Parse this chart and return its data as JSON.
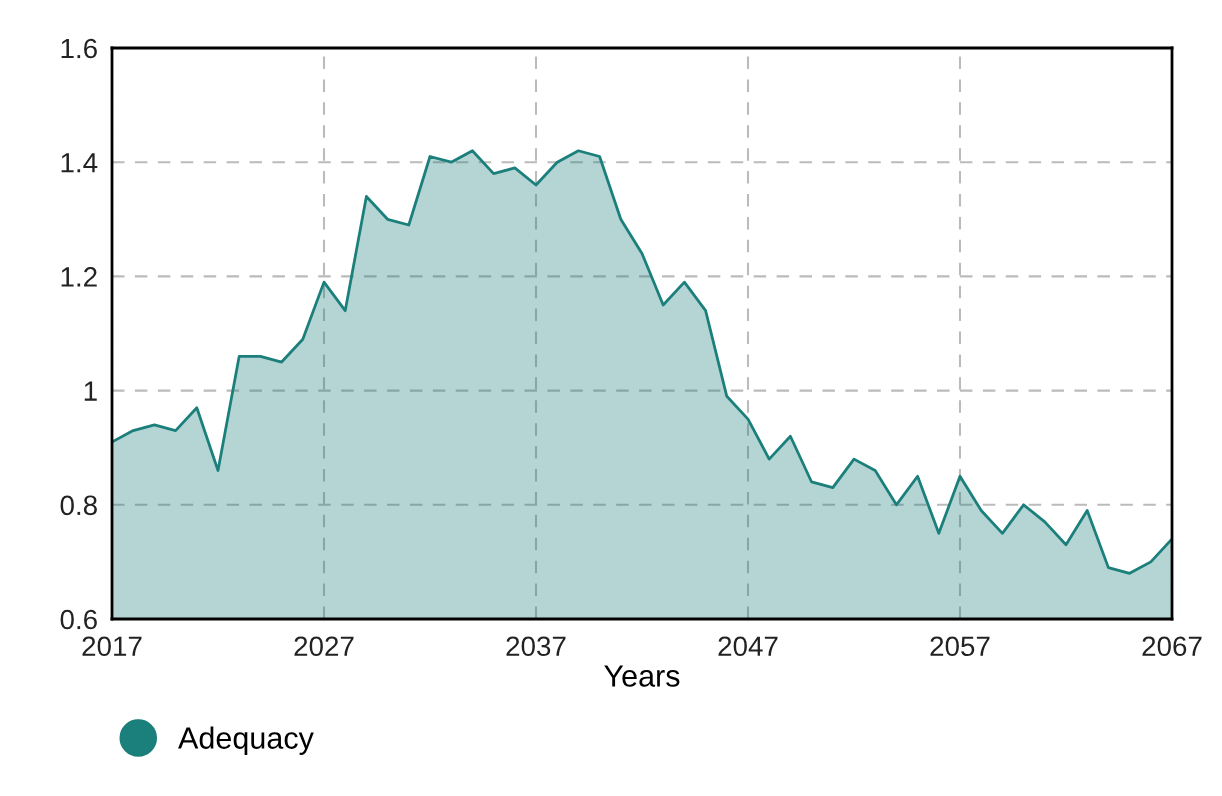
{
  "chart_data": {
    "type": "area",
    "xlabel": "Years",
    "x": [
      2017,
      2018,
      2019,
      2020,
      2021,
      2022,
      2023,
      2024,
      2025,
      2026,
      2027,
      2028,
      2029,
      2030,
      2031,
      2032,
      2033,
      2034,
      2035,
      2036,
      2037,
      2038,
      2039,
      2040,
      2041,
      2042,
      2043,
      2044,
      2045,
      2046,
      2047,
      2048,
      2049,
      2050,
      2051,
      2052,
      2053,
      2054,
      2055,
      2056,
      2057,
      2058,
      2059,
      2060,
      2061,
      2062,
      2063,
      2064,
      2065,
      2066,
      2067
    ],
    "series": [
      {
        "name": "Adequacy",
        "color": "#1b7f7b",
        "values": [
          0.91,
          0.93,
          0.94,
          0.93,
          0.97,
          0.86,
          1.06,
          1.06,
          1.05,
          1.09,
          1.19,
          1.14,
          1.34,
          1.3,
          1.29,
          1.41,
          1.4,
          1.42,
          1.38,
          1.39,
          1.36,
          1.4,
          1.42,
          1.41,
          1.3,
          1.24,
          1.15,
          1.19,
          1.14,
          0.99,
          0.95,
          0.88,
          0.92,
          0.84,
          0.83,
          0.88,
          0.86,
          0.8,
          0.85,
          0.75,
          0.85,
          0.79,
          0.75,
          0.8,
          0.77,
          0.73,
          0.79,
          0.69,
          0.68,
          0.7,
          0.74
        ]
      }
    ],
    "xlim": [
      2017,
      2067
    ],
    "xticks": [
      2017,
      2027,
      2037,
      2047,
      2057,
      2067
    ],
    "ylim": [
      0.6,
      1.6
    ],
    "yticks": [
      0.6,
      0.8,
      {
        "value": 1.0,
        "label": "1"
      },
      1.2,
      1.4,
      1.6
    ],
    "grid": true,
    "legend": "bottom left",
    "marker": "none",
    "line_style": "solid"
  }
}
